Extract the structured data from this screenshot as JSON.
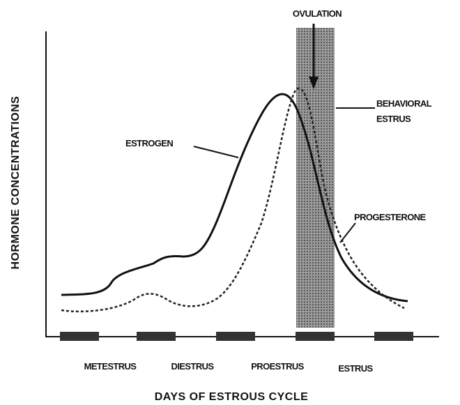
{
  "title": "DAYS OF ESTROUS CYCLE",
  "y_axis_label": "HORMONE CONCENTRATIONS",
  "annotations": {
    "ovulation": "OVULATION",
    "behavioral_estrus": [
      "BEHAVIORAL",
      "ESTRUS"
    ]
  },
  "curves": {
    "estrogen": "ESTROGEN",
    "progesterone": "PROGESTERONE"
  },
  "phases": [
    "METESTRUS",
    "DIESTRUS",
    "PROESTRUS",
    "ESTRUS"
  ]
}
